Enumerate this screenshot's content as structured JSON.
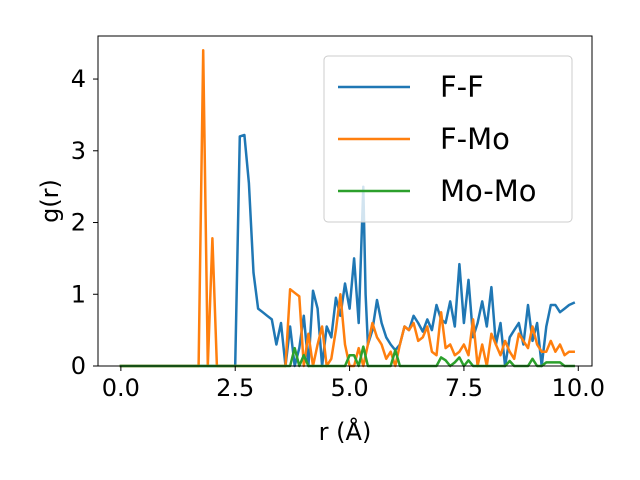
{
  "chart_data": {
    "type": "line",
    "title": "",
    "xlabel": "r (Å)",
    "ylabel": "g(r)",
    "xlim": [
      -0.5,
      10.3
    ],
    "ylim": [
      0,
      4.6
    ],
    "xticks": [
      0.0,
      2.5,
      5.0,
      7.5,
      10.0
    ],
    "xtick_labels": [
      "0.0",
      "2.5",
      "5.0",
      "7.5",
      "10.0"
    ],
    "yticks": [
      0,
      1,
      2,
      3,
      4
    ],
    "ytick_labels": [
      "0",
      "1",
      "2",
      "3",
      "4"
    ],
    "grid": false,
    "legend_position": "top-right",
    "series": [
      {
        "name": "F-F",
        "color": "#1f77b4",
        "x": [
          0.0,
          2.5,
          2.6,
          2.7,
          2.8,
          2.9,
          3.0,
          3.1,
          3.2,
          3.3,
          3.4,
          3.5,
          3.6,
          3.7,
          3.8,
          3.9,
          4.0,
          4.1,
          4.2,
          4.3,
          4.4,
          4.5,
          4.6,
          4.7,
          4.8,
          4.9,
          5.0,
          5.1,
          5.2,
          5.3,
          5.35,
          5.4,
          5.5,
          5.6,
          5.7,
          5.8,
          5.9,
          6.0,
          6.1,
          6.2,
          6.3,
          6.4,
          6.5,
          6.6,
          6.7,
          6.8,
          6.9,
          7.0,
          7.1,
          7.2,
          7.3,
          7.4,
          7.5,
          7.6,
          7.7,
          7.8,
          7.9,
          8.0,
          8.1,
          8.2,
          8.3,
          8.4,
          8.5,
          8.6,
          8.7,
          8.8,
          8.9,
          9.0,
          9.1,
          9.2,
          9.3,
          9.4,
          9.5,
          9.6,
          9.7,
          9.8,
          9.9
        ],
        "y": [
          0.0,
          0.0,
          3.2,
          3.22,
          2.55,
          1.3,
          0.8,
          0.75,
          0.7,
          0.65,
          0.3,
          0.6,
          0.0,
          0.55,
          0.0,
          0.25,
          0.7,
          0.0,
          1.05,
          0.8,
          0.0,
          0.55,
          0.4,
          0.95,
          0.7,
          1.15,
          0.8,
          1.5,
          0.6,
          2.5,
          1.0,
          0.3,
          0.5,
          0.92,
          0.6,
          0.4,
          0.3,
          0.22,
          0.3,
          0.55,
          0.5,
          0.7,
          0.6,
          0.48,
          0.65,
          0.5,
          0.85,
          0.65,
          0.6,
          0.9,
          0.55,
          1.42,
          0.6,
          1.2,
          0.4,
          0.6,
          0.9,
          0.55,
          1.1,
          0.3,
          0.6,
          0.0,
          0.4,
          0.5,
          0.6,
          0.3,
          0.85,
          0.35,
          0.6,
          0.0,
          0.55,
          0.85,
          0.85,
          0.75,
          0.8,
          0.85,
          0.88
        ]
      },
      {
        "name": "F-Mo",
        "color": "#ff7f0e",
        "x": [
          0.0,
          1.7,
          1.8,
          1.9,
          2.0,
          2.1,
          3.6,
          3.7,
          3.8,
          3.9,
          4.0,
          4.1,
          4.2,
          4.3,
          4.4,
          4.5,
          4.6,
          4.7,
          4.8,
          4.9,
          5.0,
          5.1,
          5.2,
          5.3,
          5.4,
          5.5,
          5.6,
          5.7,
          5.8,
          5.9,
          6.0,
          6.1,
          6.2,
          6.3,
          6.4,
          6.5,
          6.6,
          6.7,
          6.8,
          6.9,
          7.0,
          7.1,
          7.2,
          7.3,
          7.4,
          7.5,
          7.6,
          7.7,
          7.8,
          7.9,
          8.0,
          8.1,
          8.2,
          8.3,
          8.4,
          8.5,
          8.6,
          8.7,
          8.8,
          8.9,
          9.0,
          9.1,
          9.2,
          9.3,
          9.4,
          9.5,
          9.6,
          9.7,
          9.8,
          9.9
        ],
        "y": [
          0.0,
          0.0,
          4.4,
          0.0,
          1.78,
          0.0,
          0.0,
          1.07,
          1.02,
          0.97,
          0.0,
          0.45,
          0.0,
          0.3,
          0.55,
          0.0,
          0.1,
          0.5,
          1.0,
          0.3,
          0.0,
          0.0,
          0.25,
          0.0,
          0.3,
          0.6,
          0.4,
          0.3,
          0.1,
          0.2,
          0.0,
          0.3,
          0.55,
          0.5,
          0.6,
          0.35,
          0.4,
          0.55,
          0.2,
          0.15,
          0.75,
          0.25,
          0.3,
          0.15,
          0.2,
          0.3,
          0.15,
          0.65,
          0.0,
          0.3,
          0.0,
          0.45,
          0.3,
          0.15,
          0.35,
          0.2,
          0.1,
          0.45,
          0.35,
          0.25,
          0.55,
          0.3,
          0.2,
          0.2,
          0.35,
          0.2,
          0.3,
          0.15,
          0.2,
          0.2
        ]
      },
      {
        "name": "Mo-Mo",
        "color": "#2ca02c",
        "x": [
          0.0,
          3.7,
          3.8,
          3.9,
          4.0,
          4.1,
          4.9,
          5.0,
          5.1,
          5.2,
          5.3,
          5.4,
          5.5,
          5.9,
          6.0,
          6.1,
          6.9,
          7.0,
          7.1,
          7.2,
          7.3,
          7.4,
          7.5,
          7.6,
          7.7,
          7.8,
          8.4,
          8.5,
          8.6,
          8.9,
          9.0,
          9.1,
          9.2,
          9.3,
          9.4,
          9.5,
          9.6,
          9.7,
          9.8,
          9.9
        ],
        "y": [
          0.0,
          0.0,
          0.25,
          0.0,
          0.15,
          0.0,
          0.0,
          0.15,
          0.15,
          0.0,
          0.27,
          0.0,
          0.0,
          0.0,
          0.22,
          0.0,
          0.0,
          0.12,
          0.08,
          0.0,
          0.05,
          0.12,
          0.0,
          0.08,
          0.0,
          0.0,
          0.0,
          0.07,
          0.0,
          0.0,
          0.1,
          0.0,
          0.0,
          0.05,
          0.05,
          0.05,
          0.05,
          0.0,
          0.0,
          0.0
        ]
      }
    ]
  }
}
